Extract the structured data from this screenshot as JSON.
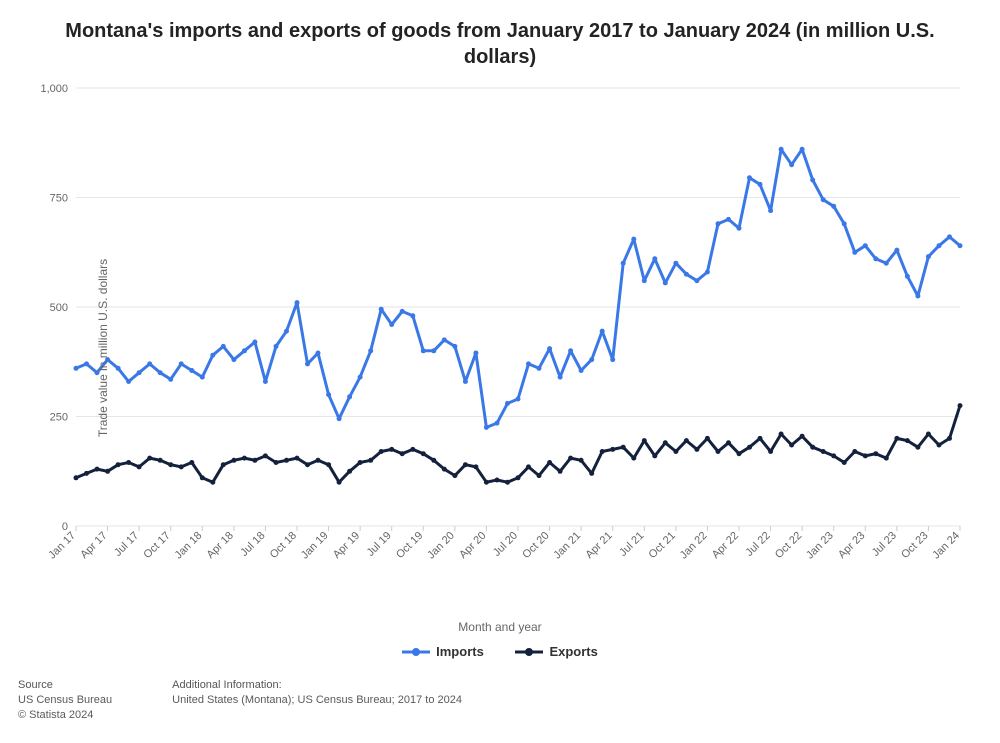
{
  "chart": {
    "type": "line",
    "title": "Montana's imports and exports of goods from January 2017 to January 2024 (in million U.S. dollars)",
    "title_fontsize": 20,
    "ylabel": "Trade value in million U.S. dollars",
    "xlabel": "Month and year",
    "label_fontsize": 12,
    "background_color": "#ffffff",
    "grid_color": "#e6e6e6",
    "ylim": [
      0,
      1000
    ],
    "ytick_step": 250,
    "ytick_labels": [
      "0",
      "250",
      "500",
      "750",
      "1,000"
    ],
    "marker_radius": 2.5,
    "line_width": 3,
    "xtick_labels": [
      "Jan 17",
      "Apr 17",
      "Jul 17",
      "Oct 17",
      "Jan 18",
      "Apr 18",
      "Jul 18",
      "Oct 18",
      "Jan 19",
      "Apr 19",
      "Jul 19",
      "Oct 19",
      "Jan 20",
      "Apr 20",
      "Jul 20",
      "Oct 20",
      "Jan 21",
      "Apr 21",
      "Jul 21",
      "Oct 21",
      "Jan 22",
      "Apr 22",
      "Jul 22",
      "Oct 22",
      "Jan 23",
      "Apr 23",
      "Jul 23",
      "Oct 23",
      "Jan 24"
    ],
    "xtick_step_months": 3,
    "n_points": 85,
    "series": [
      {
        "name": "Imports",
        "color": "#3a78e7",
        "values": [
          360,
          370,
          350,
          380,
          360,
          330,
          350,
          370,
          350,
          335,
          370,
          355,
          340,
          390,
          410,
          380,
          400,
          420,
          330,
          410,
          445,
          510,
          370,
          395,
          300,
          245,
          295,
          340,
          400,
          495,
          460,
          490,
          480,
          400,
          400,
          425,
          410,
          330,
          395,
          225,
          235,
          280,
          290,
          370,
          360,
          405,
          340,
          400,
          355,
          380,
          445,
          380,
          600,
          655,
          560,
          610,
          555,
          600,
          575,
          560,
          580,
          690,
          700,
          680,
          795,
          780,
          720,
          860,
          825,
          860,
          790,
          745,
          730,
          690,
          625,
          640,
          610,
          600,
          630,
          570,
          525,
          615,
          640,
          660,
          640
        ]
      },
      {
        "name": "Exports",
        "color": "#14213d",
        "values": [
          110,
          120,
          130,
          125,
          140,
          145,
          135,
          155,
          150,
          140,
          135,
          145,
          110,
          100,
          140,
          150,
          155,
          150,
          160,
          145,
          150,
          155,
          140,
          150,
          140,
          100,
          125,
          145,
          150,
          170,
          175,
          165,
          175,
          165,
          150,
          130,
          115,
          140,
          135,
          100,
          105,
          100,
          110,
          135,
          115,
          145,
          125,
          155,
          150,
          120,
          170,
          175,
          180,
          155,
          195,
          160,
          190,
          170,
          195,
          175,
          200,
          170,
          190,
          165,
          180,
          200,
          170,
          210,
          185,
          205,
          180,
          170,
          160,
          145,
          170,
          160,
          165,
          155,
          200,
          195,
          180,
          210,
          185,
          200,
          275
        ]
      }
    ],
    "legend": {
      "position": "bottom-center",
      "items": [
        "Imports",
        "Exports"
      ]
    }
  },
  "footer": {
    "source_head": "Source",
    "source_line": "US Census Bureau",
    "copyright": "© Statista 2024",
    "info_head": "Additional Information:",
    "info_line": "United States (Montana); US Census Bureau; 2017 to 2024"
  }
}
